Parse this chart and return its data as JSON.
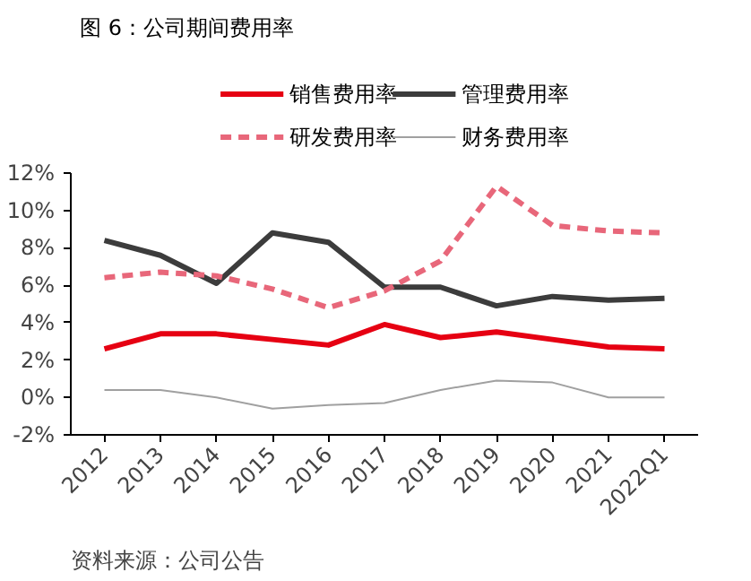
{
  "chart_data": {
    "type": "line",
    "title": "图 6：公司期间费用率",
    "categories": [
      "2012",
      "2013",
      "2014",
      "2015",
      "2016",
      "2017",
      "2018",
      "2019",
      "2020",
      "2021",
      "2022Q1"
    ],
    "series": [
      {
        "name": "销售费用率",
        "color": "#e60012",
        "values": [
          2.6,
          3.4,
          3.4,
          3.1,
          2.8,
          3.9,
          3.2,
          3.5,
          3.1,
          2.7,
          2.6
        ]
      },
      {
        "name": "管理费用率",
        "color": "#3c3c3c",
        "values": [
          8.4,
          7.6,
          6.1,
          8.8,
          8.3,
          5.9,
          5.9,
          4.9,
          5.4,
          5.2,
          5.3
        ]
      },
      {
        "name": "研发费用率",
        "color": "#e8677a",
        "line_style": "dashed",
        "values": [
          6.4,
          6.7,
          6.5,
          5.8,
          4.8,
          5.7,
          7.3,
          11.3,
          9.2,
          8.9,
          8.8
        ]
      },
      {
        "name": "财务费用率",
        "color": "#a0a0a0",
        "values": [
          0.4,
          0.4,
          0.0,
          -0.6,
          -0.4,
          -0.3,
          0.4,
          0.9,
          0.8,
          0.0,
          0.0
        ]
      }
    ],
    "ylim": [
      -2,
      12
    ],
    "yticks": [
      {
        "value": -2,
        "label": "-2%"
      },
      {
        "value": 0,
        "label": "0%"
      },
      {
        "value": 2,
        "label": "2%"
      },
      {
        "value": 4,
        "label": "4%"
      },
      {
        "value": 6,
        "label": "6%"
      },
      {
        "value": 8,
        "label": "8%"
      },
      {
        "value": 10,
        "label": "10%"
      },
      {
        "value": 12,
        "label": "12%"
      }
    ],
    "grid": false,
    "legend": "top",
    "line_style": "solid",
    "annotations": [
      "资料来源：公司公告"
    ]
  }
}
